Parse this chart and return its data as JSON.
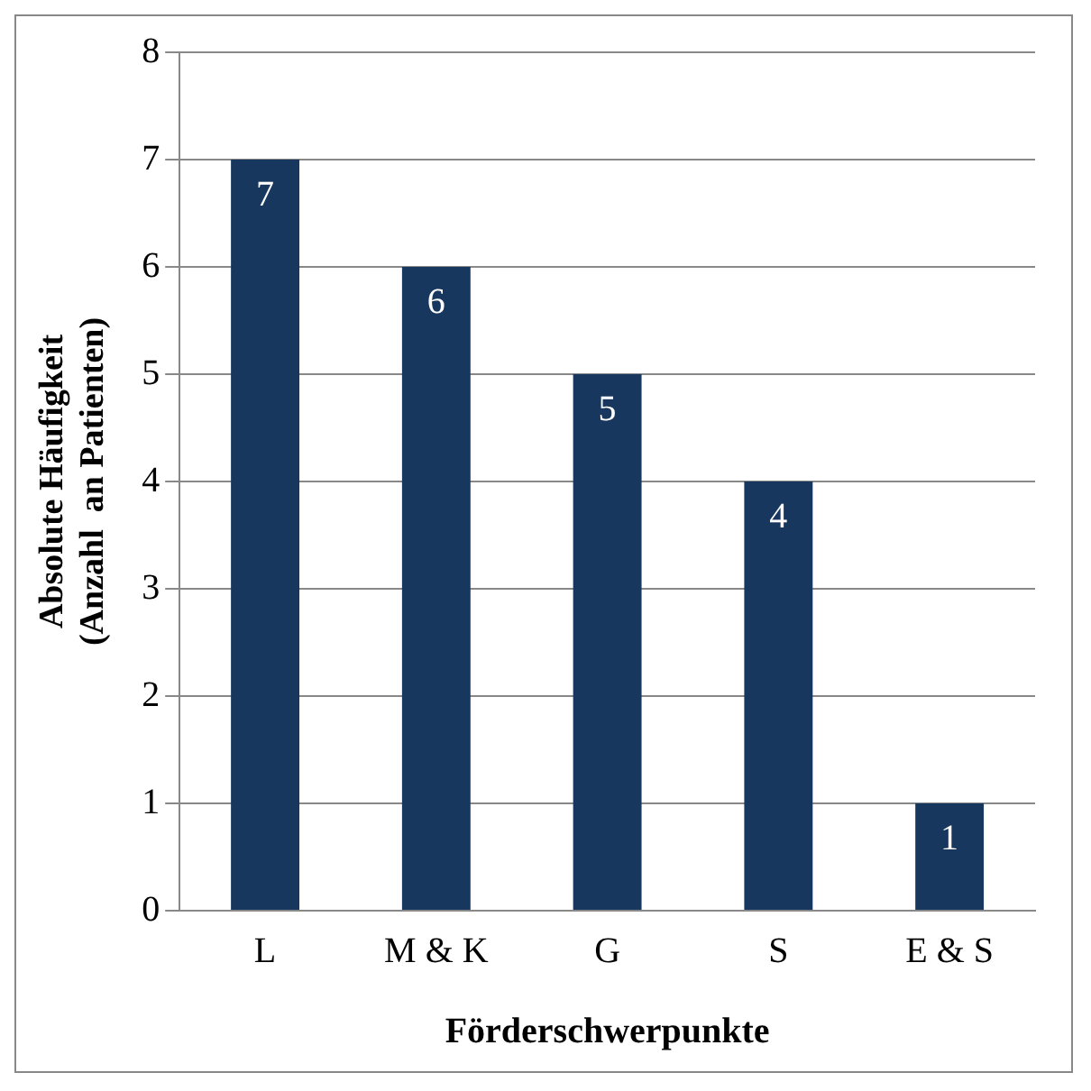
{
  "chart_data": {
    "type": "bar",
    "xlabel": "Förderschwerpunkte",
    "ylabel": "Absolute Häufigkeit\n(Anzahl  an Patienten)",
    "categories": [
      "L",
      "M & K",
      "G",
      "S",
      "E & S"
    ],
    "values": [
      7,
      6,
      5,
      4,
      1
    ],
    "color": "#17375e",
    "ylim": [
      0,
      8
    ],
    "yticks": [
      0,
      1,
      2,
      3,
      4,
      5,
      6,
      7,
      8
    ],
    "grid": "y",
    "legend": false,
    "data_labels": true
  }
}
